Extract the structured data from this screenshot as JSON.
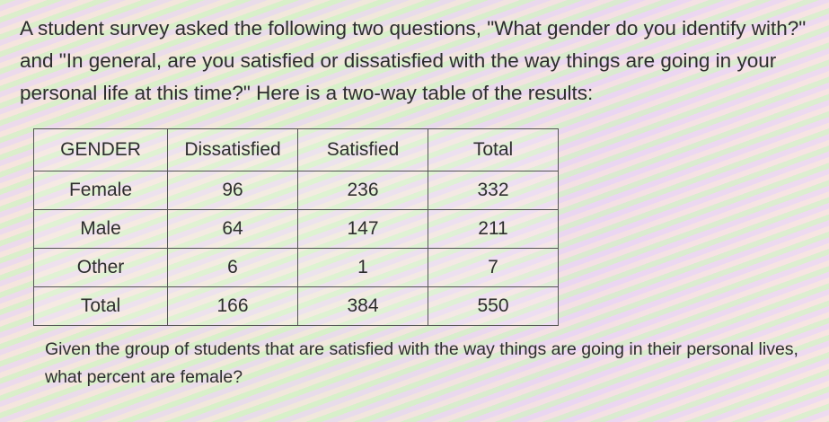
{
  "intro": "A student survey asked the following two questions, \"What gender do you identify with?\" and \"In general, are you satisfied or dissatisfied with the way things are going in your personal life at this time?\" Here is a two-way table of the results:",
  "table": {
    "headers": [
      "GENDER",
      "Dissatisfied",
      "Satisfied",
      "Total"
    ],
    "rows": [
      [
        "Female",
        "96",
        "236",
        "332"
      ],
      [
        "Male",
        "64",
        "147",
        "211"
      ],
      [
        "Other",
        "6",
        "1",
        "7"
      ],
      [
        "Total",
        "166",
        "384",
        "550"
      ]
    ]
  },
  "question": "Given the group of students that are satisfied with the way things are going in their personal lives, what percent are female?"
}
